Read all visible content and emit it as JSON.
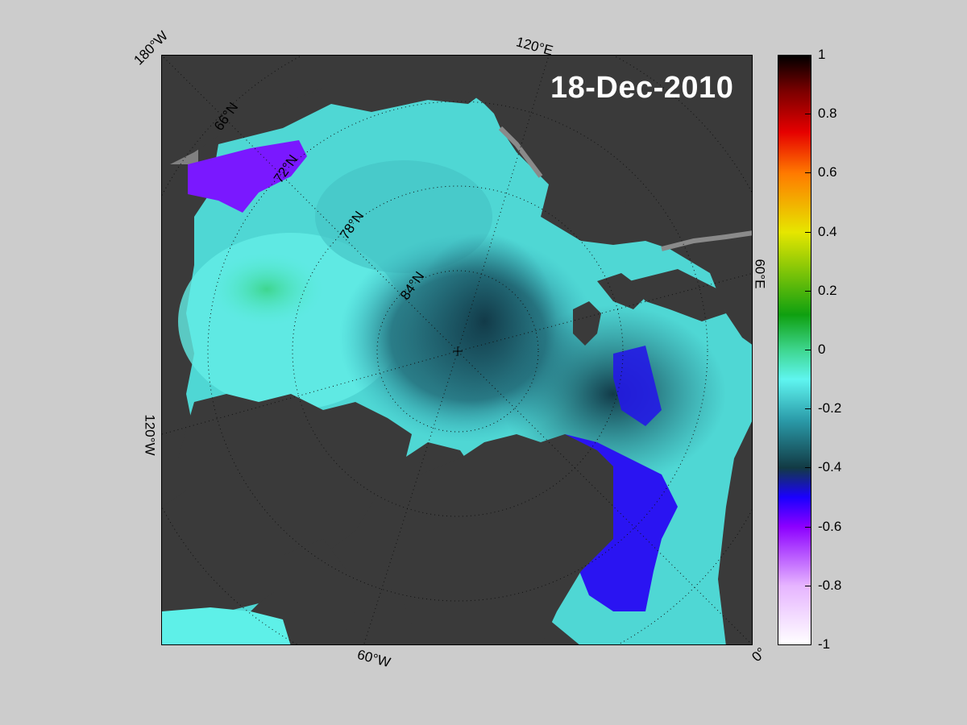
{
  "map": {
    "date": "18-Dec-2010",
    "longitude_labels": [
      "180°W",
      "120°E",
      "60°E",
      "0°",
      "60°W",
      "120°W"
    ],
    "latitude_labels": [
      "66°N",
      "72°N",
      "78°N",
      "84°N"
    ]
  },
  "colorbar": {
    "min": -1,
    "max": 1,
    "ticks": [
      "1",
      "0.8",
      "0.6",
      "0.4",
      "0.2",
      "0",
      "-0.2",
      "-0.4",
      "-0.6",
      "-0.8",
      "-1"
    ],
    "colors": {
      "white": "#ffffff",
      "lavender": "#e6b4ff",
      "violet": "#8c00ff",
      "blue": "#1a00ff",
      "dark_teal": "#123a44",
      "teal": "#2a9aa8",
      "cyan": "#5ff5f0",
      "green_teal": "#3ed68f",
      "green": "#0fa010",
      "yellow": "#e6e600",
      "orange": "#ff7a00",
      "red": "#e60000",
      "dark_red": "#7a0000",
      "black": "#000000"
    }
  }
}
